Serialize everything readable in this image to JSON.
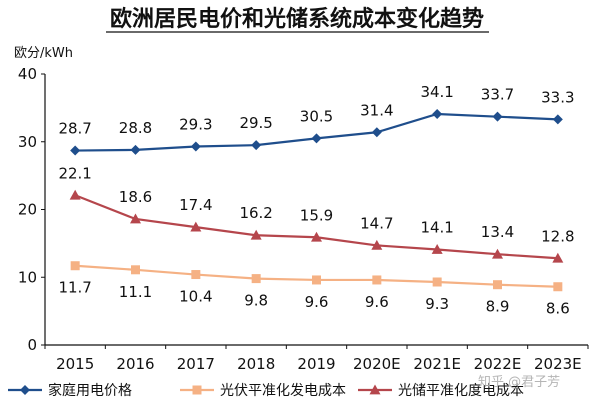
{
  "chart_data": {
    "type": "line",
    "title": "欧洲居民电价和光储系统成本变化趋势",
    "ylabel": "欧分/kWh",
    "ylim": [
      0,
      40
    ],
    "yticks": [
      0,
      10,
      20,
      30,
      40
    ],
    "categories": [
      "2015",
      "2016",
      "2017",
      "2018",
      "2019",
      "2020E",
      "2021E",
      "2022E",
      "2023E"
    ],
    "grid": false,
    "legend_position": "bottom",
    "series": [
      {
        "name": "家庭用电价格",
        "marker": "diamond",
        "color": "#1f4e8c",
        "values": [
          28.7,
          28.8,
          29.3,
          29.5,
          30.5,
          31.4,
          34.1,
          33.7,
          33.3
        ],
        "labels": [
          "28.7",
          "28.8",
          "29.3",
          "29.5",
          "30.5",
          "31.4",
          "34.1",
          "33.7",
          "33.3"
        ]
      },
      {
        "name": "光伏平准化发电成本",
        "marker": "square",
        "color": "#f5b184",
        "values": [
          11.7,
          11.1,
          10.4,
          9.8,
          9.6,
          9.6,
          9.3,
          8.9,
          8.6
        ],
        "labels": [
          "11.7",
          "11.1",
          "10.4",
          "9.8",
          "9.6",
          "9.6",
          "9.3",
          "8.9",
          "8.6"
        ]
      },
      {
        "name": "光储平准化度电成本",
        "marker": "triangle",
        "color": "#b5464c",
        "values": [
          22.1,
          18.6,
          17.4,
          16.2,
          15.9,
          14.7,
          14.1,
          13.4,
          12.8
        ],
        "labels": [
          "22.1",
          "18.6",
          "17.4",
          "16.2",
          "15.9",
          "14.7",
          "14.1",
          "13.4",
          "12.8"
        ]
      }
    ]
  },
  "watermark": "知乎 @君子芳"
}
